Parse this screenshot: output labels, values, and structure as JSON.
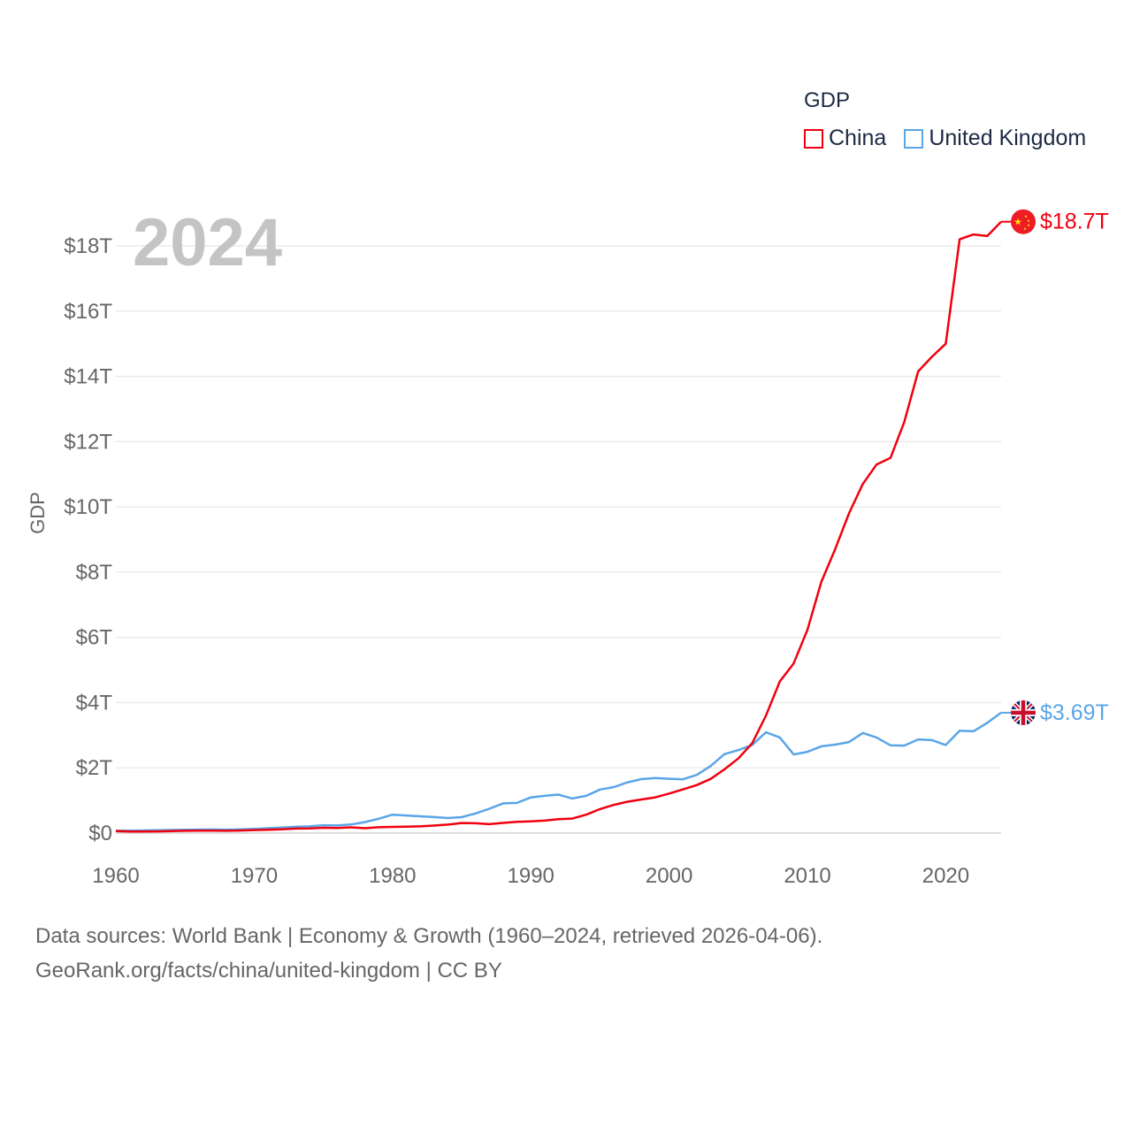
{
  "chart_data": {
    "type": "line",
    "title": "GDP",
    "ylabel": "GDP",
    "xlabel": "",
    "year_label": "2024",
    "xlim": [
      1960,
      2024
    ],
    "ylim": [
      0,
      18
    ],
    "grid": true,
    "legend_placement": "top-right",
    "x_ticks": [
      "1960",
      "1970",
      "1980",
      "1990",
      "2000",
      "2010",
      "2020"
    ],
    "y_ticks": [
      "$0",
      "$2T",
      "$4T",
      "$6T",
      "$8T",
      "$10T",
      "$12T",
      "$14T",
      "$16T",
      "$18T"
    ],
    "x": [
      1960,
      1961,
      1962,
      1963,
      1964,
      1965,
      1966,
      1967,
      1968,
      1969,
      1970,
      1971,
      1972,
      1973,
      1974,
      1975,
      1976,
      1977,
      1978,
      1979,
      1980,
      1981,
      1982,
      1983,
      1984,
      1985,
      1986,
      1987,
      1988,
      1989,
      1990,
      1991,
      1992,
      1993,
      1994,
      1995,
      1996,
      1997,
      1998,
      1999,
      2000,
      2001,
      2002,
      2003,
      2004,
      2005,
      2006,
      2007,
      2008,
      2009,
      2010,
      2011,
      2012,
      2013,
      2014,
      2015,
      2016,
      2017,
      2018,
      2019,
      2020,
      2021,
      2022,
      2023,
      2024
    ],
    "series": [
      {
        "name": "China",
        "color": "#f0000f",
        "end_label": "$18.7T",
        "flag": "china-flag",
        "values": [
          0.06,
          0.05,
          0.047,
          0.051,
          0.059,
          0.07,
          0.076,
          0.072,
          0.07,
          0.079,
          0.093,
          0.1,
          0.114,
          0.139,
          0.144,
          0.164,
          0.154,
          0.175,
          0.15,
          0.178,
          0.191,
          0.196,
          0.205,
          0.231,
          0.26,
          0.31,
          0.301,
          0.273,
          0.313,
          0.348,
          0.361,
          0.383,
          0.427,
          0.445,
          0.564,
          0.734,
          0.864,
          0.962,
          1.029,
          1.094,
          1.211,
          1.339,
          1.471,
          1.66,
          1.955,
          2.286,
          2.752,
          3.6,
          4.65,
          5.2,
          6.23,
          7.7,
          8.7,
          9.8,
          10.7,
          11.3,
          11.5,
          12.6,
          14.15,
          14.6,
          15.0,
          18.2,
          18.35,
          18.3,
          18.74
        ]
      },
      {
        "name": "United Kingdom",
        "color": "#5aa5e8",
        "end_label": "$3.69T",
        "flag": "uk-flag",
        "values": [
          0.073,
          0.077,
          0.081,
          0.086,
          0.094,
          0.101,
          0.108,
          0.111,
          0.105,
          0.114,
          0.13,
          0.148,
          0.17,
          0.193,
          0.206,
          0.241,
          0.233,
          0.263,
          0.335,
          0.438,
          0.565,
          0.54,
          0.515,
          0.49,
          0.462,
          0.489,
          0.601,
          0.745,
          0.91,
          0.925,
          1.093,
          1.142,
          1.179,
          1.061,
          1.14,
          1.335,
          1.409,
          1.555,
          1.653,
          1.687,
          1.665,
          1.649,
          1.785,
          2.054,
          2.421,
          2.544,
          2.7,
          3.09,
          2.93,
          2.41,
          2.49,
          2.66,
          2.71,
          2.79,
          3.07,
          2.93,
          2.69,
          2.68,
          2.87,
          2.85,
          2.7,
          3.14,
          3.12,
          3.38,
          3.69
        ]
      }
    ]
  },
  "legend": {
    "title": "GDP",
    "items": [
      "China",
      "United Kingdom"
    ]
  },
  "footer": {
    "line1": "Data sources: World Bank | Economy & Growth (1960–2024, retrieved 2026-04-06).",
    "line2": "GeoRank.org/facts/china/united-kingdom | CC BY"
  }
}
